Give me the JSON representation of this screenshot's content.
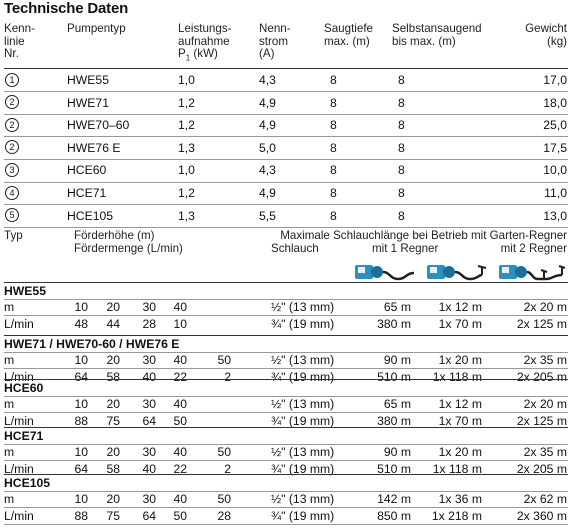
{
  "title": "Technische Daten",
  "top_table": {
    "headers": {
      "kennlinie": [
        "Kenn-",
        "linie",
        "Nr."
      ],
      "pumpentyp": [
        "Pumpentyp"
      ],
      "leistung": [
        "Leistungs-",
        "aufnahme",
        "P1 (kW)"
      ],
      "nennstrom": [
        "Nenn-",
        "strom",
        "(A)"
      ],
      "saugtiefe": [
        "Saugtiefe",
        "max. (m)"
      ],
      "selbstansaugend": [
        "Selbstansaugend",
        "bis max. (m)"
      ],
      "gewicht": [
        "Gewicht",
        "(kg)"
      ]
    },
    "rows": [
      {
        "nr": "1",
        "typ": "HWE55",
        "p1": "1,0",
        "strom": "4,3",
        "saug": "8",
        "selbst": "8",
        "gewicht": "17,0"
      },
      {
        "nr": "2",
        "typ": "HWE71",
        "p1": "1,2",
        "strom": "4,9",
        "saug": "8",
        "selbst": "8",
        "gewicht": "18,0"
      },
      {
        "nr": "2",
        "typ": "HWE70–60",
        "p1": "1,2",
        "strom": "4,9",
        "saug": "8",
        "selbst": "8",
        "gewicht": "25,0"
      },
      {
        "nr": "2",
        "typ": "HWE76 E",
        "p1": "1,3",
        "strom": "5,0",
        "saug": "8",
        "selbst": "8",
        "gewicht": "17,5"
      },
      {
        "nr": "3",
        "typ": "HCE60",
        "p1": "1,0",
        "strom": "4,3",
        "saug": "8",
        "selbst": "8",
        "gewicht": "10,0"
      },
      {
        "nr": "4",
        "typ": "HCE71",
        "p1": "1,2",
        "strom": "4,9",
        "saug": "8",
        "selbst": "8",
        "gewicht": "11,0"
      },
      {
        "nr": "5",
        "typ": "HCE105",
        "p1": "1,3",
        "strom": "5,5",
        "saug": "8",
        "selbst": "8",
        "gewicht": "13,0"
      }
    ]
  },
  "bottom_table": {
    "headers": {
      "typ": "Typ",
      "foerderhoehe": "Förderhöhe (m)",
      "foerdermenge": "Fördermenge (L/min)",
      "schlauchlaenge": "Maximale Schlauchlänge bei Betrieb mit Garten-Regner",
      "schlauch": "Schlauch",
      "regner1": "mit 1 Regner",
      "regner2": "mit 2 Regner"
    },
    "icons": [
      "pump-hose-icon",
      "pump-one-sprinkler-icon",
      "pump-two-sprinkler-icon"
    ],
    "groups": [
      {
        "name": "HWE55",
        "rows": [
          {
            "unit": "m",
            "v": [
              "10",
              "20",
              "30",
              "40",
              ""
            ],
            "hose": "½\" (13 mm)",
            "len": "65 m",
            "r1": "1x 12 m",
            "r2": "2x 20 m"
          },
          {
            "unit": "L/min",
            "v": [
              "48",
              "44",
              "28",
              "10",
              ""
            ],
            "hose": "¾\" (19 mm)",
            "len": "380 m",
            "r1": "1x 70 m",
            "r2": "2x 125 m"
          }
        ]
      },
      {
        "name": "HWE71 / HWE70-60 / HWE76 E",
        "rows": [
          {
            "unit": "m",
            "v": [
              "10",
              "20",
              "30",
              "40",
              "50"
            ],
            "hose": "½\" (13 mm)",
            "len": "90 m",
            "r1": "1x 20 m",
            "r2": "2x 35 m"
          },
          {
            "unit": "L/min",
            "v": [
              "64",
              "58",
              "40",
              "22",
              "2"
            ],
            "hose": "¾\" (19 mm)",
            "len": "510 m",
            "r1": "1x 118 m",
            "r2": "2x 205 m"
          }
        ]
      },
      {
        "name": "HCE60",
        "rows": [
          {
            "unit": "m",
            "v": [
              "10",
              "20",
              "30",
              "40",
              ""
            ],
            "hose": "½\" (13 mm)",
            "len": "65 m",
            "r1": "1x 12 m",
            "r2": "2x 20 m"
          },
          {
            "unit": "L/min",
            "v": [
              "88",
              "75",
              "64",
              "50",
              ""
            ],
            "hose": "¾\" (19 mm)",
            "len": "380 m",
            "r1": "1x 70 m",
            "r2": "2x 125 m"
          }
        ]
      },
      {
        "name": "HCE71",
        "rows": [
          {
            "unit": "m",
            "v": [
              "10",
              "20",
              "30",
              "40",
              "50"
            ],
            "hose": "½\" (13 mm)",
            "len": "90 m",
            "r1": "1x 20 m",
            "r2": "2x 35 m"
          },
          {
            "unit": "L/min",
            "v": [
              "64",
              "58",
              "40",
              "22",
              "2"
            ],
            "hose": "¾\" (19 mm)",
            "len": "510 m",
            "r1": "1x 118 m",
            "r2": "2x 205 m"
          }
        ]
      },
      {
        "name": "HCE105",
        "rows": [
          {
            "unit": "m",
            "v": [
              "10",
              "20",
              "30",
              "40",
              "50"
            ],
            "hose": "½\" (13 mm)",
            "len": "142 m",
            "r1": "1x 36 m",
            "r2": "2x 62 m"
          },
          {
            "unit": "L/min",
            "v": [
              "88",
              "75",
              "64",
              "50",
              "28"
            ],
            "hose": "¾\" (19 mm)",
            "len": "850 m",
            "r1": "1x 218 m",
            "r2": "2x 360 m"
          }
        ]
      }
    ]
  },
  "colors": {
    "accent": "#2a8fc1",
    "text": "#111111",
    "rule": "#999999"
  }
}
